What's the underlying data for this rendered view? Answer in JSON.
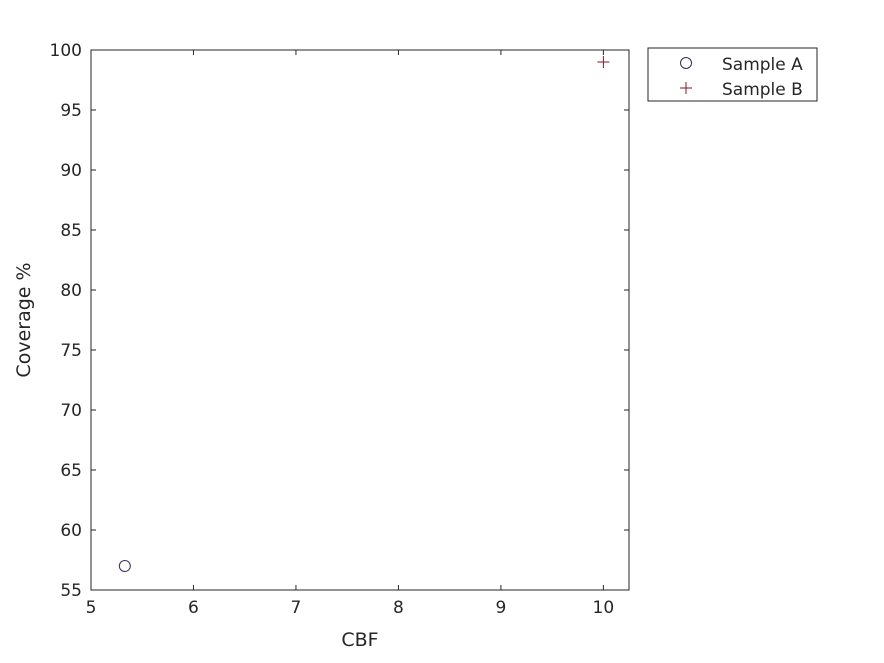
{
  "chart_data": {
    "type": "scatter",
    "xlabel": "CBF",
    "ylabel": "Coverage %",
    "xlim": [
      5,
      10.25
    ],
    "ylim": [
      55,
      100
    ],
    "x_ticks": [
      5,
      6,
      7,
      8,
      9,
      10
    ],
    "y_ticks": [
      55,
      60,
      65,
      70,
      75,
      80,
      85,
      90,
      95,
      100
    ],
    "grid": false,
    "legend_position": "outside-top-right",
    "series": [
      {
        "name": "Sample A",
        "marker": "circle",
        "color": "#3d2b56",
        "points": [
          {
            "x": 5.33,
            "y": 57.0
          }
        ]
      },
      {
        "name": "Sample B",
        "marker": "plus",
        "color": "#7a1a2e",
        "points": [
          {
            "x": 10.0,
            "y": 99.0
          }
        ]
      }
    ]
  }
}
